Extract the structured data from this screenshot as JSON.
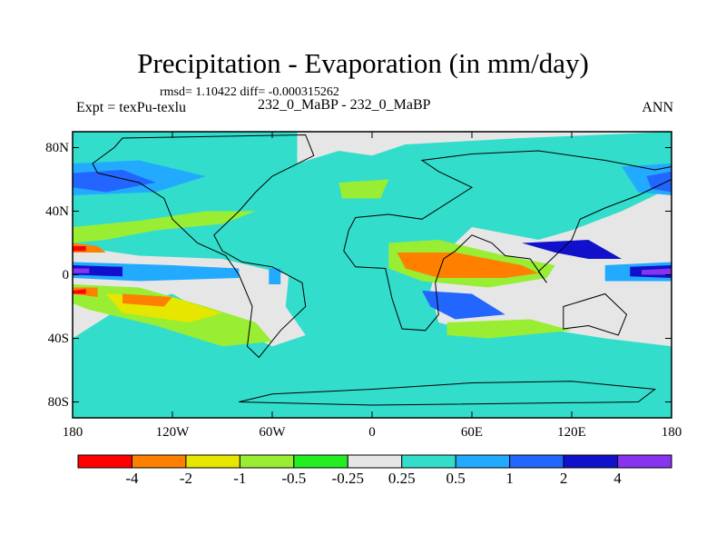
{
  "chart_data": {
    "type": "heatmap",
    "title": "Precipitation - Evaporation (in mm/day)",
    "stats": "rmsd= 1.10422 diff= -0.000315262",
    "left_label": "Expt = texPu-texlu",
    "center_label": "232_0_MaBP - 232_0_MaBP",
    "right_label": "ANN",
    "x_ticks": [
      "180",
      "120W",
      "60W",
      "0",
      "60E",
      "120E",
      "180"
    ],
    "x_values": [
      -180,
      -120,
      -60,
      0,
      60,
      120,
      180
    ],
    "y_ticks": [
      "80N",
      "40N",
      "0",
      "40S",
      "80S"
    ],
    "y_values": [
      80,
      40,
      0,
      -40,
      -80
    ],
    "xlim": [
      -180,
      180
    ],
    "ylim": [
      -90,
      90
    ],
    "colorbar": {
      "labels": [
        "-4",
        "-2",
        "-1",
        "-0.5",
        "-0.25",
        "0.25",
        "0.5",
        "1",
        "2",
        "4"
      ],
      "colors": [
        "#ff0000",
        "#ff8000",
        "#e6e600",
        "#99ee33",
        "#22ee22",
        "#e6e6e6",
        "#33ddcc",
        "#22aaff",
        "#2266ff",
        "#1111cc",
        "#8833ee"
      ]
    },
    "level_colors": {
      "-4": "#ff0000",
      "-3": "#ff8000",
      "-2": "#e6e600",
      "-1": "#99ee33",
      "-0.5": "#22ee22",
      "0": "#e6e6e6",
      "0.5": "#33ddcc",
      "1": "#22aaff",
      "2": "#2266ff",
      "3": "#1111cc",
      "4": "#8833ee"
    },
    "regions": [
      {
        "level": 0.5,
        "points": [
          [
            -180,
            90
          ],
          [
            -45,
            90
          ],
          [
            -45,
            70
          ],
          [
            -20,
            78
          ],
          [
            0,
            75
          ],
          [
            20,
            82
          ],
          [
            90,
            86
          ],
          [
            180,
            90
          ],
          [
            180,
            55
          ],
          [
            150,
            40
          ],
          [
            120,
            28
          ],
          [
            100,
            22
          ],
          [
            60,
            30
          ],
          [
            40,
            10
          ],
          [
            35,
            -10
          ],
          [
            40,
            -30
          ],
          [
            70,
            -38
          ],
          [
            110,
            -35
          ],
          [
            140,
            -40
          ],
          [
            180,
            -45
          ],
          [
            180,
            -90
          ],
          [
            -180,
            -90
          ],
          [
            -180,
            -40
          ],
          [
            -150,
            -20
          ],
          [
            -120,
            -12
          ],
          [
            -90,
            -30
          ],
          [
            -60,
            -45
          ],
          [
            -40,
            -38
          ],
          [
            -52,
            -20
          ],
          [
            -50,
            0
          ],
          [
            -90,
            10
          ],
          [
            -140,
            12
          ],
          [
            -180,
            18
          ]
        ]
      },
      {
        "level": 1,
        "points": [
          [
            -180,
            70
          ],
          [
            -140,
            72
          ],
          [
            -100,
            62
          ],
          [
            -130,
            52
          ],
          [
            -180,
            50
          ]
        ]
      },
      {
        "level": 2,
        "points": [
          [
            -180,
            64
          ],
          [
            -150,
            66
          ],
          [
            -130,
            58
          ],
          [
            -160,
            52
          ],
          [
            -180,
            55
          ]
        ]
      },
      {
        "level": 1,
        "points": [
          [
            150,
            68
          ],
          [
            180,
            70
          ],
          [
            180,
            50
          ],
          [
            160,
            52
          ]
        ]
      },
      {
        "level": 2,
        "points": [
          [
            165,
            62
          ],
          [
            180,
            65
          ],
          [
            180,
            52
          ],
          [
            168,
            54
          ]
        ]
      },
      {
        "level": 1,
        "points": [
          [
            -180,
            8
          ],
          [
            -120,
            6
          ],
          [
            -80,
            4
          ],
          [
            -80,
            -2
          ],
          [
            -140,
            -4
          ],
          [
            -180,
            -2
          ]
        ]
      },
      {
        "level": 3,
        "points": [
          [
            -180,
            6
          ],
          [
            -150,
            5
          ],
          [
            -150,
            -1
          ],
          [
            -180,
            0
          ]
        ]
      },
      {
        "level": 4,
        "points": [
          [
            -180,
            4
          ],
          [
            -170,
            4
          ],
          [
            -170,
            1
          ],
          [
            -180,
            1
          ]
        ]
      },
      {
        "level": 1,
        "points": [
          [
            140,
            6
          ],
          [
            180,
            8
          ],
          [
            180,
            -4
          ],
          [
            140,
            -4
          ]
        ]
      },
      {
        "level": 3,
        "points": [
          [
            155,
            5
          ],
          [
            180,
            6
          ],
          [
            180,
            -2
          ],
          [
            155,
            -1
          ]
        ]
      },
      {
        "level": 4,
        "points": [
          [
            162,
            3
          ],
          [
            180,
            4
          ],
          [
            180,
            0
          ],
          [
            162,
            0
          ]
        ]
      },
      {
        "level": -1,
        "points": [
          [
            -180,
            30
          ],
          [
            -140,
            34
          ],
          [
            -100,
            40
          ],
          [
            -70,
            40
          ],
          [
            -90,
            32
          ],
          [
            -130,
            28
          ],
          [
            -160,
            22
          ],
          [
            -180,
            20
          ]
        ]
      },
      {
        "level": -1,
        "points": [
          [
            -180,
            -6
          ],
          [
            -140,
            -8
          ],
          [
            -100,
            -20
          ],
          [
            -70,
            -30
          ],
          [
            -60,
            -42
          ],
          [
            -90,
            -45
          ],
          [
            -130,
            -32
          ],
          [
            -170,
            -22
          ],
          [
            -180,
            -18
          ]
        ]
      },
      {
        "level": -2,
        "points": [
          [
            -160,
            -12
          ],
          [
            -120,
            -14
          ],
          [
            -90,
            -24
          ],
          [
            -110,
            -30
          ],
          [
            -150,
            -24
          ]
        ]
      },
      {
        "level": -3,
        "points": [
          [
            -150,
            -12
          ],
          [
            -120,
            -14
          ],
          [
            -125,
            -20
          ],
          [
            -150,
            -18
          ]
        ]
      },
      {
        "level": -3,
        "points": [
          [
            -180,
            20
          ],
          [
            -165,
            18
          ],
          [
            -160,
            14
          ],
          [
            -180,
            14
          ]
        ]
      },
      {
        "level": -4,
        "points": [
          [
            -180,
            18
          ],
          [
            -172,
            18
          ],
          [
            -172,
            15
          ],
          [
            -180,
            15
          ]
        ]
      },
      {
        "level": -3,
        "points": [
          [
            -180,
            -8
          ],
          [
            -165,
            -8
          ],
          [
            -165,
            -14
          ],
          [
            -180,
            -12
          ]
        ]
      },
      {
        "level": -4,
        "points": [
          [
            -180,
            -10
          ],
          [
            -172,
            -9
          ],
          [
            -172,
            -12
          ],
          [
            -180,
            -12
          ]
        ]
      },
      {
        "level": -1,
        "points": [
          [
            -20,
            58
          ],
          [
            10,
            60
          ],
          [
            5,
            48
          ],
          [
            -18,
            48
          ]
        ]
      },
      {
        "level": -1,
        "points": [
          [
            10,
            20
          ],
          [
            40,
            22
          ],
          [
            80,
            12
          ],
          [
            110,
            6
          ],
          [
            105,
            -2
          ],
          [
            70,
            -8
          ],
          [
            30,
            -4
          ],
          [
            10,
            4
          ]
        ]
      },
      {
        "level": -3,
        "points": [
          [
            15,
            14
          ],
          [
            50,
            14
          ],
          [
            90,
            6
          ],
          [
            100,
            1
          ],
          [
            80,
            -2
          ],
          [
            40,
            -2
          ],
          [
            20,
            4
          ]
        ]
      },
      {
        "level": 2,
        "points": [
          [
            30,
            -10
          ],
          [
            60,
            -12
          ],
          [
            80,
            -25
          ],
          [
            50,
            -28
          ],
          [
            35,
            -20
          ]
        ]
      },
      {
        "level": 3,
        "points": [
          [
            90,
            20
          ],
          [
            130,
            22
          ],
          [
            150,
            10
          ],
          [
            130,
            10
          ],
          [
            110,
            14
          ]
        ]
      },
      {
        "level": -1,
        "points": [
          [
            45,
            -30
          ],
          [
            95,
            -28
          ],
          [
            120,
            -35
          ],
          [
            70,
            -40
          ],
          [
            45,
            -38
          ]
        ]
      },
      {
        "level": 1,
        "points": [
          [
            -62,
            4
          ],
          [
            -55,
            4
          ],
          [
            -55,
            -6
          ],
          [
            -62,
            -6
          ]
        ]
      }
    ],
    "continent_outlines": [
      [
        [
          -150,
          86
        ],
        [
          -40,
          88
        ],
        [
          -35,
          75
        ],
        [
          -60,
          62
        ],
        [
          -70,
          52
        ],
        [
          -80,
          40
        ],
        [
          -95,
          25
        ],
        [
          -90,
          15
        ],
        [
          -78,
          8
        ],
        [
          -60,
          5
        ],
        [
          -42,
          -5
        ],
        [
          -40,
          -20
        ],
        [
          -55,
          -35
        ],
        [
          -68,
          -52
        ],
        [
          -75,
          -45
        ],
        [
          -72,
          -20
        ],
        [
          -80,
          0
        ],
        [
          -88,
          12
        ],
        [
          -105,
          20
        ],
        [
          -120,
          35
        ],
        [
          -125,
          48
        ],
        [
          -140,
          58
        ],
        [
          -165,
          64
        ],
        [
          -168,
          70
        ],
        [
          -155,
          80
        ]
      ],
      [
        [
          -10,
          36
        ],
        [
          10,
          38
        ],
        [
          30,
          35
        ],
        [
          45,
          45
        ],
        [
          60,
          55
        ],
        [
          40,
          65
        ],
        [
          30,
          72
        ],
        [
          60,
          76
        ],
        [
          100,
          78
        ],
        [
          140,
          72
        ],
        [
          170,
          66
        ],
        [
          180,
          68
        ],
        [
          180,
          60
        ],
        [
          160,
          50
        ],
        [
          140,
          42
        ],
        [
          125,
          35
        ],
        [
          120,
          22
        ],
        [
          108,
          10
        ],
        [
          100,
          2
        ],
        [
          105,
          -5
        ],
        [
          95,
          10
        ],
        [
          80,
          12
        ],
        [
          72,
          20
        ],
        [
          60,
          25
        ],
        [
          50,
          15
        ],
        [
          43,
          10
        ],
        [
          38,
          -5
        ],
        [
          40,
          -25
        ],
        [
          32,
          -35
        ],
        [
          18,
          -34
        ],
        [
          12,
          -15
        ],
        [
          8,
          4
        ],
        [
          -10,
          5
        ],
        [
          -17,
          15
        ],
        [
          -14,
          28
        ]
      ],
      [
        [
          115,
          -20
        ],
        [
          140,
          -12
        ],
        [
          153,
          -25
        ],
        [
          148,
          -38
        ],
        [
          130,
          -32
        ],
        [
          115,
          -34
        ]
      ],
      [
        [
          -60,
          -75
        ],
        [
          0,
          -72
        ],
        [
          60,
          -68
        ],
        [
          120,
          -67
        ],
        [
          170,
          -72
        ],
        [
          160,
          -80
        ],
        [
          0,
          -82
        ],
        [
          -80,
          -80
        ]
      ]
    ]
  }
}
